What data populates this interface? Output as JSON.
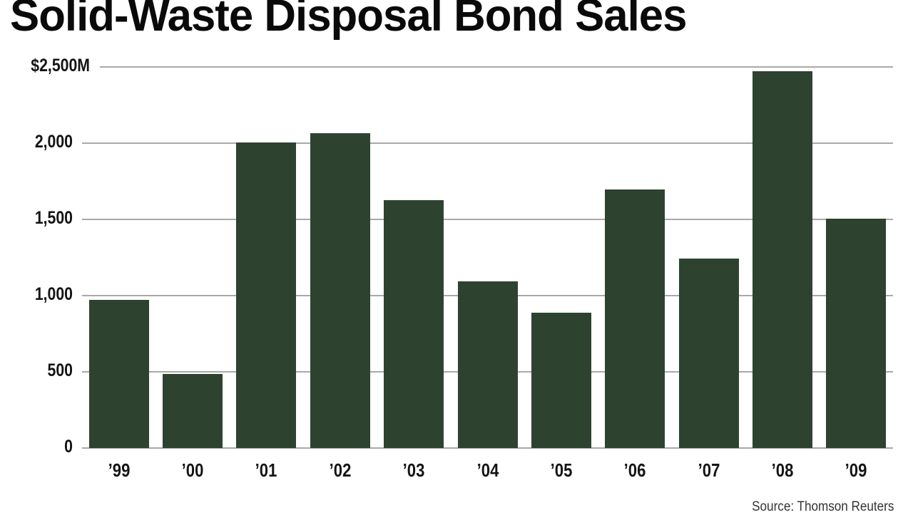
{
  "chart_data": {
    "type": "bar",
    "title": "Solid-Waste Disposal Bond Sales",
    "xlabel": "",
    "ylabel": "",
    "categories": [
      "'99",
      "'00",
      "'01",
      "'02",
      "'03",
      "'04",
      "'05",
      "'06",
      "'07",
      "'08",
      "'09"
    ],
    "values": [
      970,
      485,
      2005,
      2065,
      1625,
      1095,
      890,
      1695,
      1245,
      2470,
      1505
    ],
    "units": "$M",
    "ylim": [
      0,
      2500
    ],
    "yticks": [
      0,
      500,
      1000,
      1500,
      2000,
      2500
    ],
    "ytick_labels": [
      "0",
      "500",
      "1,000",
      "1,500",
      "2,000",
      "$2,500M"
    ],
    "grid": true,
    "legend": null,
    "bar_color": "#2e4230",
    "source": "Source: Thomson Reuters"
  }
}
